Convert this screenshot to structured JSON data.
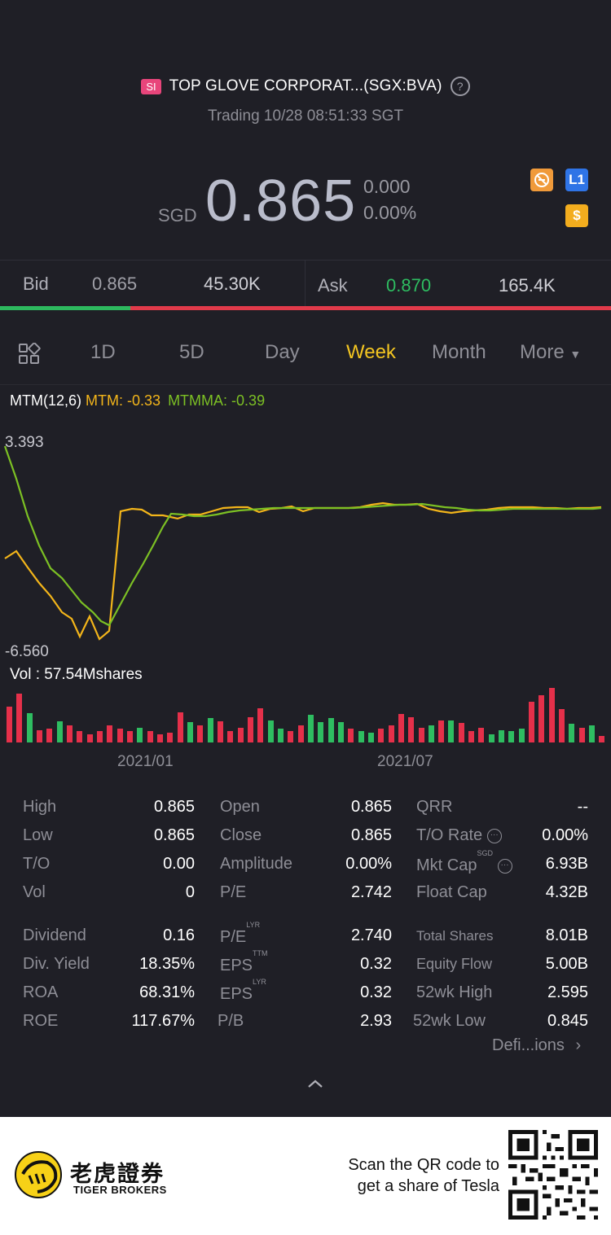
{
  "header": {
    "market_badge": "SI",
    "title": "TOP GLOVE CORPORAT...(SGX:BVA)",
    "status": "Trading 10/28 08:51:33 SGT",
    "currency": "SGD",
    "price": "0.865",
    "change": "0.000",
    "change_pct": "0.00%",
    "icons": [
      "no-shorting-icon",
      "level1-icon",
      "dollar-icon"
    ],
    "level_label": "L1",
    "dollar_label": "$"
  },
  "quote": {
    "bid_label": "Bid",
    "bid_price": "0.865",
    "bid_size": "45.30K",
    "ask_label": "Ask",
    "ask_price": "0.870",
    "ask_size": "165.4K",
    "bid_share": 0.213
  },
  "tabs": [
    "1D",
    "5D",
    "Day",
    "Week",
    "Month",
    "More"
  ],
  "active_tab": "Week",
  "indicator": {
    "name": "MTM(12,6)",
    "mtm": "MTM: -0.33",
    "mtmma": "MTMMA: -0.39",
    "max_label": "3.393",
    "min_label": "-6.560"
  },
  "volume": {
    "label": "Vol  : 57.54Mshares",
    "date_labels": [
      "2021/01",
      "2021/07"
    ]
  },
  "colors": {
    "mtm": "#f3b51a",
    "mtmma": "#7cc024",
    "up": "#2ebd61",
    "down": "#e5304a",
    "accent": "#f3c521"
  },
  "stats": {
    "col1": [
      {
        "label": "High",
        "value": "0.865"
      },
      {
        "label": "Low",
        "value": "0.865"
      },
      {
        "label": "T/O",
        "value": "0.00"
      },
      {
        "label": "Vol",
        "value": "0"
      },
      {
        "label": "Dividend",
        "value": "0.16"
      },
      {
        "label": "Div. Yield",
        "value": "18.35%"
      },
      {
        "label": "ROA",
        "value": "68.31%"
      },
      {
        "label": "ROE",
        "value": "117.67%"
      }
    ],
    "col2": [
      {
        "label": "Open",
        "value": "0.865"
      },
      {
        "label": "Close",
        "value": "0.865"
      },
      {
        "label": "Amplitude",
        "value": "0.00%"
      },
      {
        "label": "P/E",
        "value": "2.742"
      },
      {
        "label": "P/E",
        "sup": "LYR",
        "value": "2.740"
      },
      {
        "label": "EPS",
        "sup": "TTM",
        "value": "0.32"
      },
      {
        "label": "EPS",
        "sup": "LYR",
        "value": "0.32"
      },
      {
        "label": "P/B",
        "value": "2.93"
      }
    ],
    "col3": [
      {
        "label": "QRR",
        "value": "--"
      },
      {
        "label": "T/O Rate",
        "value": "0.00%"
      },
      {
        "label": "Mkt Cap",
        "sup": "SGD",
        "value": "6.93B"
      },
      {
        "label": "Float Cap",
        "value": "4.32B"
      },
      {
        "label": "Total Shares",
        "value": "8.01B"
      },
      {
        "label": "Equity Flow",
        "value": "5.00B"
      },
      {
        "label": "52wk High",
        "value": "2.595"
      },
      {
        "label": "52wk Low",
        "value": "0.845"
      }
    ],
    "definitions_link": "Defi...ions"
  },
  "footer": {
    "brand_cn": "老虎證券",
    "brand_en": "TIGER BROKERS",
    "scan_line1": "Scan the QR code to",
    "scan_line2": "get a share of Tesla"
  }
}
